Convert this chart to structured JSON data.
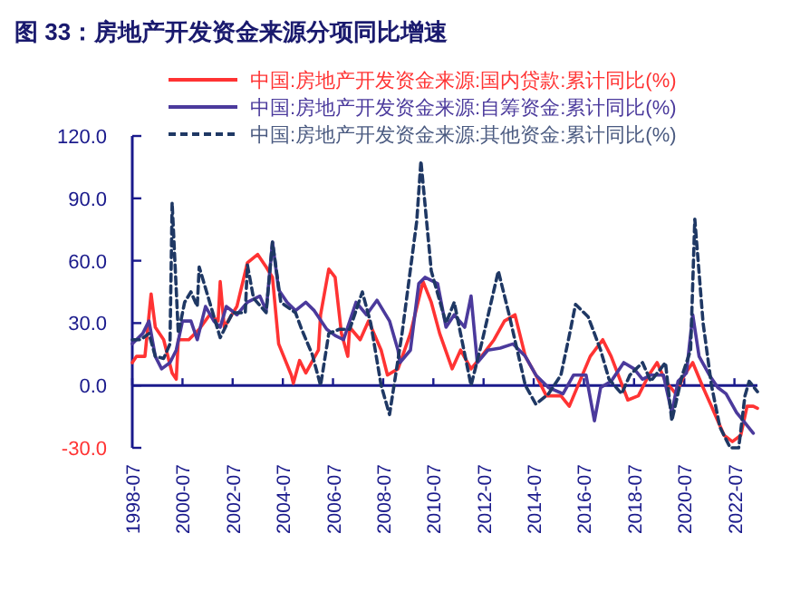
{
  "chart_data": {
    "type": "line",
    "title": "图 33：房地产开发资金来源分项同比增速",
    "legend": "top",
    "grid": false,
    "ref_lines": [
      {
        "axis": "y",
        "value": 0,
        "color": "#1a1a8c"
      }
    ],
    "xlim": [
      "1998-07",
      "2023-06"
    ],
    "xticks": [
      {
        "value": "1998-07",
        "label": "1998-07"
      },
      {
        "value": "2000-07",
        "label": "2000-07"
      },
      {
        "value": "2002-07",
        "label": "2002-07"
      },
      {
        "value": "2004-07",
        "label": "2004-07"
      },
      {
        "value": "2006-07",
        "label": "2006-07"
      },
      {
        "value": "2008-07",
        "label": "2008-07"
      },
      {
        "value": "2010-07",
        "label": "2010-07"
      },
      {
        "value": "2012-07",
        "label": "2012-07"
      },
      {
        "value": "2014-07",
        "label": "2014-07"
      },
      {
        "value": "2016-07",
        "label": "2016-07"
      },
      {
        "value": "2018-07",
        "label": "2018-07"
      },
      {
        "value": "2020-07",
        "label": "2020-07"
      },
      {
        "value": "2022-07",
        "label": "2022-07"
      }
    ],
    "ylim": [
      -30,
      120
    ],
    "yticks": [
      {
        "value": -30,
        "label": "-30.0"
      },
      {
        "value": 0,
        "label": "0.0"
      },
      {
        "value": 30,
        "label": "30.0"
      },
      {
        "value": 60,
        "label": "60.0"
      },
      {
        "value": 90,
        "label": "90.0"
      },
      {
        "value": 120,
        "label": "120.0"
      }
    ],
    "series": [
      {
        "name": "中国:房地产开发资金来源:国内贷款:累计同比(%)",
        "color": "#ff3333",
        "line_style": "solid",
        "x": [
          "1998-07",
          "1998-09",
          "1999-01",
          "1999-04",
          "1999-06",
          "1999-10",
          "2000-02",
          "2000-04",
          "2000-05",
          "2000-10",
          "2001-03",
          "2001-08",
          "2001-12",
          "2002-01",
          "2002-03",
          "2002-09",
          "2003-02",
          "2003-07",
          "2003-11",
          "2004-02",
          "2004-05",
          "2004-11",
          "2004-12",
          "2005-03",
          "2005-06",
          "2005-12",
          "2006-01",
          "2006-05",
          "2006-08",
          "2006-11",
          "2007-02",
          "2007-03",
          "2007-08",
          "2007-12",
          "2008-06",
          "2008-09",
          "2009-02",
          "2009-08",
          "2010-02",
          "2010-06",
          "2010-10",
          "2011-04",
          "2011-08",
          "2012-01",
          "2012-06",
          "2012-12",
          "2013-05",
          "2013-10",
          "2014-03",
          "2014-08",
          "2015-01",
          "2015-08",
          "2015-12",
          "2016-05",
          "2016-10",
          "2017-04",
          "2017-08",
          "2018-04",
          "2018-09",
          "2019-02",
          "2019-06",
          "2019-10",
          "2020-03",
          "2020-07",
          "2020-11",
          "2021-04",
          "2021-08",
          "2022-02",
          "2022-06",
          "2022-10",
          "2023-01",
          "2023-04",
          "2023-06"
        ],
        "values": [
          11,
          14,
          14,
          44,
          28,
          22,
          6,
          3,
          22,
          22,
          27,
          34,
          31,
          50,
          28,
          38,
          59,
          63,
          57,
          52,
          20,
          5,
          1,
          12,
          6,
          17,
          34,
          56,
          52,
          25,
          14,
          28,
          22,
          31,
          17,
          5,
          8,
          25,
          50,
          40,
          25,
          8,
          17,
          8,
          14,
          22,
          31,
          34,
          14,
          5,
          -5,
          -5,
          -10,
          2,
          14,
          22,
          14,
          -7,
          -5,
          5,
          11,
          2,
          -4,
          5,
          11,
          -1,
          -10,
          -24,
          -27,
          -24,
          -10,
          -10,
          -11
        ]
      },
      {
        "name": "中国:房地产开发资金来源:自筹资金:累计同比(%)",
        "color": "#4b3a9c",
        "line_style": "solid",
        "x": [
          "1998-07",
          "1998-12",
          "1999-03",
          "1999-06",
          "1999-09",
          "2000-01",
          "2000-04",
          "2000-07",
          "2000-11",
          "2001-02",
          "2001-06",
          "2001-10",
          "2002-01",
          "2002-04",
          "2002-09",
          "2003-02",
          "2003-08",
          "2003-11",
          "2004-02",
          "2004-05",
          "2004-09",
          "2005-01",
          "2005-06",
          "2005-10",
          "2006-04",
          "2006-08",
          "2006-12",
          "2007-06",
          "2007-11",
          "2008-04",
          "2008-10",
          "2009-02",
          "2009-03",
          "2009-08",
          "2009-12",
          "2010-03",
          "2010-09",
          "2011-01",
          "2011-05",
          "2011-10",
          "2012-01",
          "2012-04",
          "2012-09",
          "2013-03",
          "2013-09",
          "2014-03",
          "2014-08",
          "2015-02",
          "2015-09",
          "2016-02",
          "2016-08",
          "2016-12",
          "2017-03",
          "2017-08",
          "2018-02",
          "2018-07",
          "2018-11",
          "2019-03",
          "2019-09",
          "2020-01",
          "2020-04",
          "2020-08",
          "2020-11",
          "2021-02",
          "2021-07",
          "2021-11",
          "2022-03",
          "2022-08",
          "2022-12",
          "2023-04"
        ],
        "values": [
          20,
          25,
          31,
          14,
          8,
          11,
          17,
          31,
          31,
          22,
          38,
          31,
          28,
          38,
          34,
          40,
          43,
          36,
          69,
          46,
          40,
          36,
          40,
          36,
          27,
          24,
          22,
          40,
          34,
          41,
          31,
          17,
          11,
          17,
          49,
          52,
          49,
          28,
          34,
          28,
          43,
          11,
          17,
          18,
          20,
          14,
          5,
          -1,
          -4,
          5,
          5,
          -17,
          -1,
          2,
          11,
          8,
          3,
          5,
          5,
          -13,
          2,
          6,
          34,
          14,
          5,
          -1,
          -4,
          -13,
          -18,
          -23
        ]
      },
      {
        "name": "中国:房地产开发资金来源:其他资金:累计同比(%)",
        "color": "#1f3864",
        "line_style": "dashed",
        "x": [
          "1998-07",
          "1998-11",
          "1999-03",
          "1999-06",
          "1999-10",
          "2000-01",
          "2000-02",
          "2000-05",
          "2000-08",
          "2000-11",
          "2001-02",
          "2001-03",
          "2001-08",
          "2002-01",
          "2002-07",
          "2003-01",
          "2003-02",
          "2003-05",
          "2003-11",
          "2004-02",
          "2004-06",
          "2005-01",
          "2005-04",
          "2005-09",
          "2006-01",
          "2006-05",
          "2006-10",
          "2007-03",
          "2007-09",
          "2008-01",
          "2008-06",
          "2008-10",
          "2009-04",
          "2009-11",
          "2010-01",
          "2010-06",
          "2011-01",
          "2011-05",
          "2012-01",
          "2012-06",
          "2013-02",
          "2013-07",
          "2014-03",
          "2014-08",
          "2015-02",
          "2015-08",
          "2015-12",
          "2016-03",
          "2016-09",
          "2017-03",
          "2017-07",
          "2018-01",
          "2018-05",
          "2018-11",
          "2019-03",
          "2019-10",
          "2020-01",
          "2020-06",
          "2020-10",
          "2020-12",
          "2021-04",
          "2021-08",
          "2021-12",
          "2022-05",
          "2022-09",
          "2022-12",
          "2023-02",
          "2023-06"
        ],
        "values": [
          22,
          22,
          25,
          14,
          13,
          20,
          88,
          25,
          40,
          45,
          38,
          57,
          40,
          23,
          35,
          35,
          58,
          42,
          35,
          69,
          40,
          35,
          27,
          15,
          0,
          25,
          27,
          27,
          45,
          30,
          0,
          -14,
          25,
          79,
          108,
          55,
          30,
          40,
          0,
          20,
          55,
          35,
          0,
          -9,
          -4,
          5,
          24,
          39,
          33,
          17,
          3,
          -4,
          5,
          11,
          2,
          11,
          -17,
          5,
          17,
          80,
          30,
          0,
          -20,
          -30,
          -30,
          -5,
          2,
          -3
        ]
      }
    ]
  }
}
